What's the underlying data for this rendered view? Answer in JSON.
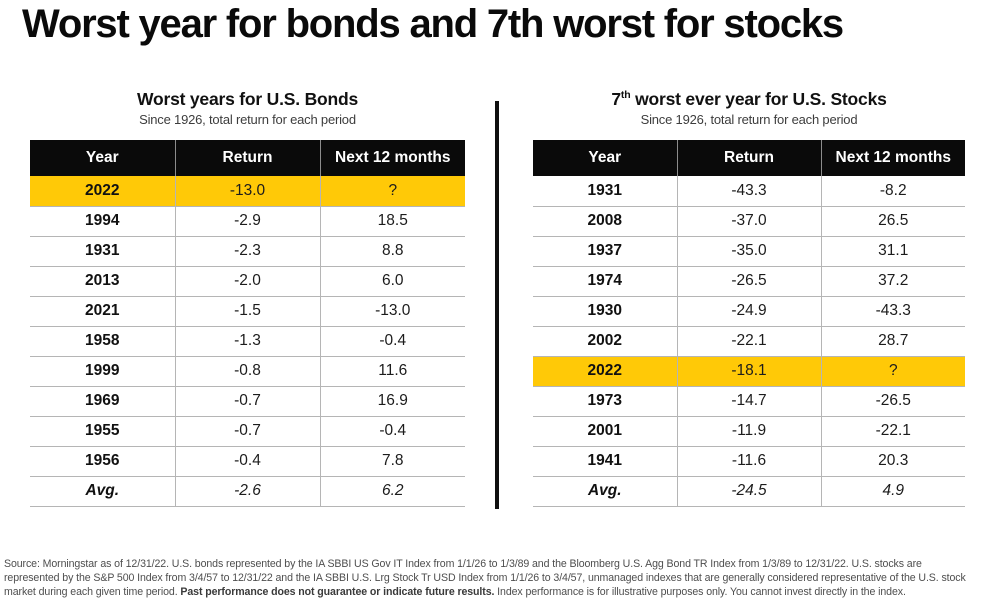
{
  "page_title": "Worst year for bonds and 7th worst for stocks",
  "colors": {
    "highlight_yellow": "#FFC907",
    "header_bg": "#0a0a0a",
    "row_border": "#b5b5b5",
    "divider": "#0f0f0f"
  },
  "tables": [
    {
      "title_parts": {
        "pre": "Worst years for U.S. Bonds",
        "sup": "",
        "main": ""
      },
      "subtitle": "Since 1926, total return for each period",
      "columns": [
        "Year",
        "Return",
        "Next 12 months"
      ],
      "rows": [
        {
          "year": "2022",
          "return": "-13.0",
          "next12": "?",
          "highlight": true
        },
        {
          "year": "1994",
          "return": "-2.9",
          "next12": "18.5"
        },
        {
          "year": "1931",
          "return": "-2.3",
          "next12": "8.8"
        },
        {
          "year": "2013",
          "return": "-2.0",
          "next12": "6.0"
        },
        {
          "year": "2021",
          "return": "-1.5",
          "next12": "-13.0"
        },
        {
          "year": "1958",
          "return": "-1.3",
          "next12": "-0.4"
        },
        {
          "year": "1999",
          "return": "-0.8",
          "next12": "11.6"
        },
        {
          "year": "1969",
          "return": "-0.7",
          "next12": "16.9"
        },
        {
          "year": "1955",
          "return": "-0.7",
          "next12": "-0.4"
        },
        {
          "year": "1956",
          "return": "-0.4",
          "next12": "7.8"
        }
      ],
      "avg": {
        "year": "Avg.",
        "return": "-2.6",
        "next12": "6.2"
      }
    },
    {
      "title_parts": {
        "pre": "7",
        "sup": "th",
        "main": " worst ever year for U.S. Stocks"
      },
      "subtitle": "Since 1926, total return for each period",
      "columns": [
        "Year",
        "Return",
        "Next 12 months"
      ],
      "rows": [
        {
          "year": "1931",
          "return": "-43.3",
          "next12": "-8.2"
        },
        {
          "year": "2008",
          "return": "-37.0",
          "next12": "26.5"
        },
        {
          "year": "1937",
          "return": "-35.0",
          "next12": "31.1"
        },
        {
          "year": "1974",
          "return": "-26.5",
          "next12": "37.2"
        },
        {
          "year": "1930",
          "return": "-24.9",
          "next12": "-43.3"
        },
        {
          "year": "2002",
          "return": "-22.1",
          "next12": "28.7"
        },
        {
          "year": "2022",
          "return": "-18.1",
          "next12": "?",
          "highlight": true
        },
        {
          "year": "1973",
          "return": "-14.7",
          "next12": "-26.5"
        },
        {
          "year": "2001",
          "return": "-11.9",
          "next12": "-22.1"
        },
        {
          "year": "1941",
          "return": "-11.6",
          "next12": "20.3"
        }
      ],
      "avg": {
        "year": "Avg.",
        "return": "-24.5",
        "next12": "4.9"
      }
    }
  ],
  "footnote": {
    "text1": "Source: Morningstar as of 12/31/22. U.S. bonds represented by the IA SBBI US Gov IT Index from 1/1/26 to 1/3/89 and the Bloomberg U.S. Agg Bond TR Index from 1/3/89 to 12/31/22. U.S. stocks are represented by the S&P 500 Index from 3/4/57 to 12/31/22 and the IA SBBI U.S. Lrg Stock Tr USD Index from 1/1/26 to 3/4/57, unmanaged indexes that are generally considered representative of the U.S. stock market during each given time period. ",
    "bold": "Past performance does not guarantee or indicate future results.",
    "text2": " Index performance is for illustrative purposes only. You cannot invest directly in the index."
  },
  "chart_data": [
    {
      "type": "table",
      "title": "Worst years for U.S. Bonds",
      "subtitle": "Since 1926, total return for each period",
      "columns": [
        "Year",
        "Return",
        "Next 12 months"
      ],
      "rows": [
        [
          "2022",
          -13.0,
          "?"
        ],
        [
          "1994",
          -2.9,
          18.5
        ],
        [
          "1931",
          -2.3,
          8.8
        ],
        [
          "2013",
          -2.0,
          6.0
        ],
        [
          "2021",
          -1.5,
          -13.0
        ],
        [
          "1958",
          -1.3,
          -0.4
        ],
        [
          "1999",
          -0.8,
          11.6
        ],
        [
          "1969",
          -0.7,
          16.9
        ],
        [
          "1955",
          -0.7,
          -0.4
        ],
        [
          "1956",
          -0.4,
          7.8
        ],
        [
          "Avg.",
          -2.6,
          6.2
        ]
      ],
      "highlighted_row": "2022"
    },
    {
      "type": "table",
      "title": "7th worst ever year for U.S. Stocks",
      "subtitle": "Since 1926, total return for each period",
      "columns": [
        "Year",
        "Return",
        "Next 12 months"
      ],
      "rows": [
        [
          "1931",
          -43.3,
          -8.2
        ],
        [
          "2008",
          -37.0,
          26.5
        ],
        [
          "1937",
          -35.0,
          31.1
        ],
        [
          "1974",
          -26.5,
          37.2
        ],
        [
          "1930",
          -24.9,
          -43.3
        ],
        [
          "2002",
          -22.1,
          28.7
        ],
        [
          "2022",
          -18.1,
          "?"
        ],
        [
          "1973",
          -14.7,
          -26.5
        ],
        [
          "2001",
          -11.9,
          -22.1
        ],
        [
          "1941",
          -11.6,
          20.3
        ],
        [
          "Avg.",
          -24.5,
          4.9
        ]
      ],
      "highlighted_row": "2022"
    }
  ]
}
